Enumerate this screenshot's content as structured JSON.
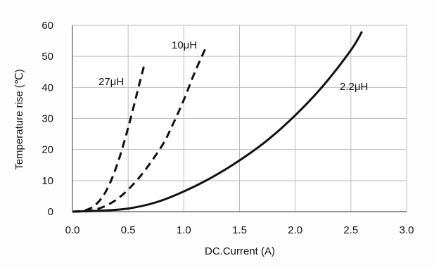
{
  "chart_data": {
    "type": "line",
    "title": "",
    "xlabel": "DC.Current (A)",
    "ylabel": "Temperature rise (℃)",
    "xlim": [
      0,
      3.0
    ],
    "ylim": [
      0,
      60
    ],
    "xticks": [
      "0.0",
      "0.5",
      "1.0",
      "1.5",
      "2.0",
      "2.5",
      "3.0"
    ],
    "yticks": [
      "0",
      "10",
      "20",
      "30",
      "40",
      "50",
      "60"
    ],
    "grid": true,
    "series": [
      {
        "name": "27μH",
        "style": "dashed",
        "points": [
          [
            0.0,
            0
          ],
          [
            0.1,
            0.3
          ],
          [
            0.2,
            2
          ],
          [
            0.3,
            6.5
          ],
          [
            0.4,
            15
          ],
          [
            0.5,
            27
          ],
          [
            0.6,
            41
          ],
          [
            0.65,
            48
          ]
        ]
      },
      {
        "name": "10μH",
        "style": "dashed",
        "points": [
          [
            0.0,
            0
          ],
          [
            0.2,
            0.6
          ],
          [
            0.4,
            4
          ],
          [
            0.6,
            11
          ],
          [
            0.8,
            21
          ],
          [
            0.9,
            28
          ],
          [
            1.0,
            36
          ],
          [
            1.1,
            45
          ],
          [
            1.2,
            53
          ]
        ]
      },
      {
        "name": "2.2μH",
        "style": "solid",
        "points": [
          [
            0.0,
            0
          ],
          [
            0.25,
            0.3
          ],
          [
            0.5,
            1
          ],
          [
            0.75,
            3
          ],
          [
            1.0,
            6.5
          ],
          [
            1.25,
            11
          ],
          [
            1.5,
            16.5
          ],
          [
            1.75,
            23
          ],
          [
            2.0,
            31
          ],
          [
            2.25,
            40.5
          ],
          [
            2.5,
            52
          ],
          [
            2.6,
            58
          ]
        ]
      }
    ]
  },
  "colors": {
    "grid": "#bdbdbd",
    "axis": "#555555",
    "line": "#111111",
    "background": "#fdfdfd"
  }
}
